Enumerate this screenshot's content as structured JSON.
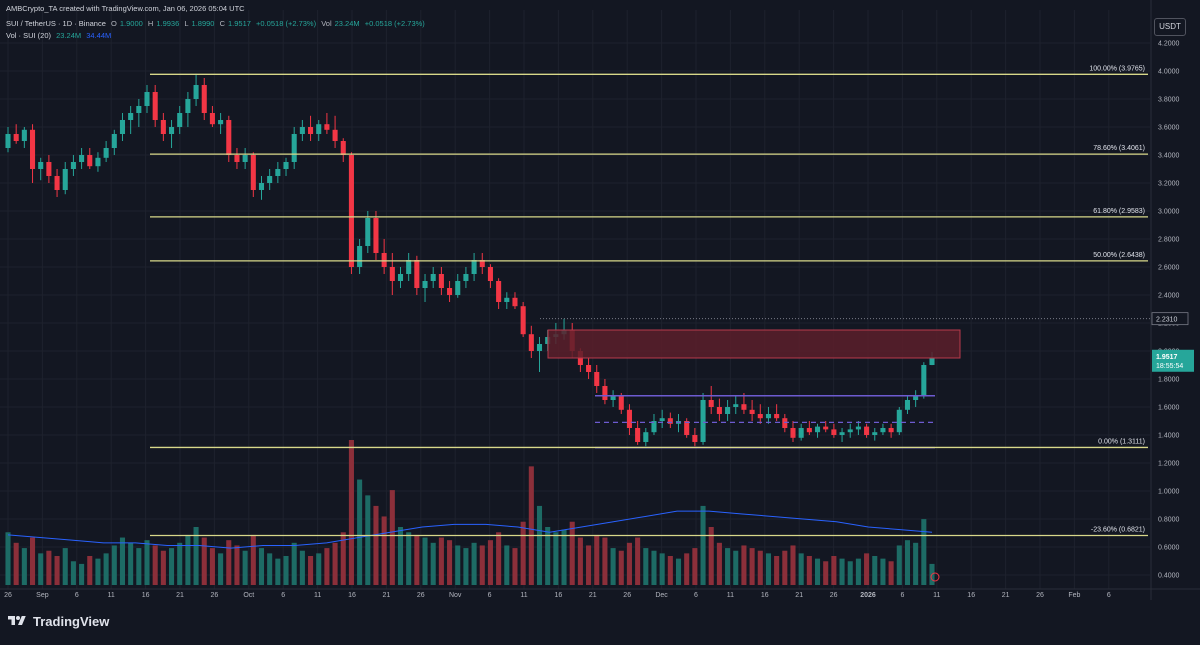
{
  "header": {
    "line1": "AMBCrypto_TA created with TradingView.com, Jan 06, 2026 05:04 UTC",
    "pair": "SUI / TetherUS · 1D · Binance",
    "ohlc": {
      "o_label": "O",
      "o": "1.9000",
      "h_label": "H",
      "h": "1.9936",
      "l_label": "L",
      "l": "1.8990",
      "c_label": "C",
      "c": "1.9517",
      "change": "+0.0518 (+2.73%)"
    },
    "vol_label": "Vol",
    "vol_value": "23.24M",
    "vol_change": "+0.0518 (+2.73%)",
    "vol_indicator": "Vol · SUI (20)",
    "vol_indicator_value": "23.24M",
    "vol_ma_value": "34.44M"
  },
  "currency_badge": "USDT",
  "watermark": "TradingView",
  "colors": {
    "background": "#131722",
    "up": "#26a69a",
    "down": "#f23645",
    "fib": "#d8d88a",
    "range": "#6d5bd0",
    "zone_fill": "#5c1f2a",
    "zone_border": "#b73a4c",
    "vol_ma": "#2962ff",
    "grid": "#1e222d",
    "axis_text": "#b2b5be"
  },
  "chart_data": {
    "type": "candlestick",
    "symbol": "SUI / TetherUS",
    "interval": "1D",
    "exchange": "Binance",
    "yaxis": {
      "range": [
        0.3,
        4.2
      ],
      "ticks": [
        "4.2000",
        "4.0000",
        "3.8000",
        "3.6000",
        "3.4000",
        "3.2000",
        "3.0000",
        "2.8000",
        "2.6000",
        "2.4000",
        "2.2000",
        "2.0000",
        "1.8000",
        "1.6000",
        "1.4000",
        "1.2000",
        "1.0000",
        "0.8000",
        "0.6000",
        "0.4000"
      ],
      "last_price_label": {
        "price": "1.9517",
        "countdown": "18:55:54"
      },
      "marker_label": "2.2310"
    },
    "xaxis": {
      "ticks": [
        "26",
        "Sep",
        "6",
        "11",
        "16",
        "21",
        "26",
        "Oct",
        "6",
        "11",
        "16",
        "21",
        "26",
        "Nov",
        "6",
        "11",
        "16",
        "21",
        "26",
        "Dec",
        "6",
        "11",
        "16",
        "21",
        "26",
        "2026",
        "6",
        "11",
        "16",
        "21",
        "26",
        "Feb",
        "6"
      ]
    },
    "fib_levels": [
      {
        "label": "100.00% (3.9765)",
        "price": 3.9765
      },
      {
        "label": "78.60% (3.4061)",
        "price": 3.4061
      },
      {
        "label": "61.80% (2.9583)",
        "price": 2.9583
      },
      {
        "label": "50.00% (2.6438)",
        "price": 2.6438
      },
      {
        "label": "0.00% (1.3111)",
        "price": 1.3111
      },
      {
        "label": "-23.60% (0.6821)",
        "price": 0.6821
      }
    ],
    "resistance_zone": {
      "from": 1.95,
      "to": 2.15
    },
    "range_box": {
      "high": 1.68,
      "mid": 1.49,
      "low": 1.31
    },
    "marker_price": 2.231,
    "candles": [
      [
        3.45,
        3.6,
        3.42,
        3.55,
        20
      ],
      [
        3.55,
        3.62,
        3.48,
        3.5,
        16
      ],
      [
        3.5,
        3.6,
        3.45,
        3.58,
        14
      ],
      [
        3.58,
        3.62,
        3.2,
        3.3,
        18
      ],
      [
        3.3,
        3.38,
        3.22,
        3.35,
        12
      ],
      [
        3.35,
        3.4,
        3.2,
        3.25,
        13
      ],
      [
        3.25,
        3.3,
        3.1,
        3.15,
        11
      ],
      [
        3.15,
        3.35,
        3.12,
        3.3,
        14
      ],
      [
        3.3,
        3.4,
        3.25,
        3.35,
        9
      ],
      [
        3.35,
        3.45,
        3.3,
        3.4,
        8
      ],
      [
        3.4,
        3.45,
        3.3,
        3.32,
        11
      ],
      [
        3.32,
        3.42,
        3.28,
        3.38,
        10
      ],
      [
        3.38,
        3.5,
        3.35,
        3.45,
        12
      ],
      [
        3.45,
        3.58,
        3.4,
        3.55,
        15
      ],
      [
        3.55,
        3.7,
        3.5,
        3.65,
        18
      ],
      [
        3.65,
        3.75,
        3.55,
        3.7,
        16
      ],
      [
        3.7,
        3.8,
        3.6,
        3.75,
        14
      ],
      [
        3.75,
        3.9,
        3.7,
        3.85,
        17
      ],
      [
        3.85,
        3.9,
        3.6,
        3.65,
        15
      ],
      [
        3.65,
        3.7,
        3.5,
        3.55,
        13
      ],
      [
        3.55,
        3.65,
        3.45,
        3.6,
        14
      ],
      [
        3.6,
        3.75,
        3.55,
        3.7,
        16
      ],
      [
        3.7,
        3.85,
        3.6,
        3.8,
        19
      ],
      [
        3.8,
        3.98,
        3.75,
        3.9,
        22
      ],
      [
        3.9,
        3.95,
        3.65,
        3.7,
        18
      ],
      [
        3.7,
        3.75,
        3.6,
        3.62,
        14
      ],
      [
        3.62,
        3.7,
        3.55,
        3.65,
        12
      ],
      [
        3.65,
        3.68,
        3.35,
        3.4,
        17
      ],
      [
        3.4,
        3.45,
        3.3,
        3.35,
        15
      ],
      [
        3.35,
        3.45,
        3.3,
        3.4,
        13
      ],
      [
        3.4,
        3.42,
        3.1,
        3.15,
        19
      ],
      [
        3.15,
        3.25,
        3.08,
        3.2,
        14
      ],
      [
        3.2,
        3.3,
        3.15,
        3.25,
        12
      ],
      [
        3.25,
        3.35,
        3.2,
        3.3,
        10
      ],
      [
        3.3,
        3.38,
        3.25,
        3.35,
        11
      ],
      [
        3.35,
        3.6,
        3.3,
        3.55,
        16
      ],
      [
        3.55,
        3.65,
        3.5,
        3.6,
        13
      ],
      [
        3.6,
        3.68,
        3.5,
        3.55,
        11
      ],
      [
        3.55,
        3.65,
        3.5,
        3.62,
        12
      ],
      [
        3.62,
        3.7,
        3.55,
        3.58,
        14
      ],
      [
        3.58,
        3.68,
        3.45,
        3.5,
        16
      ],
      [
        3.5,
        3.52,
        3.35,
        3.4,
        20
      ],
      [
        3.4,
        3.42,
        2.55,
        2.6,
        55
      ],
      [
        2.6,
        2.8,
        2.55,
        2.75,
        40
      ],
      [
        2.75,
        3.0,
        2.7,
        2.95,
        34
      ],
      [
        2.95,
        3.0,
        2.65,
        2.7,
        30
      ],
      [
        2.7,
        2.8,
        2.55,
        2.6,
        26
      ],
      [
        2.6,
        2.7,
        2.4,
        2.5,
        36
      ],
      [
        2.5,
        2.6,
        2.45,
        2.55,
        22
      ],
      [
        2.55,
        2.7,
        2.5,
        2.65,
        20
      ],
      [
        2.65,
        2.68,
        2.4,
        2.45,
        19
      ],
      [
        2.45,
        2.55,
        2.35,
        2.5,
        18
      ],
      [
        2.5,
        2.6,
        2.45,
        2.55,
        16
      ],
      [
        2.55,
        2.6,
        2.4,
        2.45,
        18
      ],
      [
        2.45,
        2.5,
        2.35,
        2.4,
        17
      ],
      [
        2.4,
        2.55,
        2.38,
        2.5,
        15
      ],
      [
        2.5,
        2.6,
        2.45,
        2.55,
        14
      ],
      [
        2.55,
        2.7,
        2.5,
        2.65,
        16
      ],
      [
        2.65,
        2.7,
        2.55,
        2.6,
        15
      ],
      [
        2.6,
        2.62,
        2.45,
        2.5,
        17
      ],
      [
        2.5,
        2.52,
        2.3,
        2.35,
        20
      ],
      [
        2.35,
        2.42,
        2.3,
        2.38,
        15
      ],
      [
        2.38,
        2.42,
        2.3,
        2.32,
        14
      ],
      [
        2.32,
        2.35,
        2.1,
        2.12,
        24
      ],
      [
        2.12,
        2.18,
        1.95,
        2.0,
        45
      ],
      [
        2.0,
        2.1,
        1.85,
        2.05,
        30
      ],
      [
        2.05,
        2.15,
        2.0,
        2.1,
        22
      ],
      [
        2.1,
        2.2,
        2.05,
        2.12,
        20
      ],
      [
        2.12,
        2.23,
        2.08,
        2.15,
        21
      ],
      [
        2.15,
        2.2,
        1.95,
        2.0,
        24
      ],
      [
        2.0,
        2.02,
        1.85,
        1.9,
        18
      ],
      [
        1.9,
        1.95,
        1.8,
        1.85,
        15
      ],
      [
        1.85,
        1.9,
        1.7,
        1.75,
        19
      ],
      [
        1.75,
        1.8,
        1.62,
        1.65,
        18
      ],
      [
        1.65,
        1.72,
        1.6,
        1.68,
        14
      ],
      [
        1.68,
        1.7,
        1.55,
        1.58,
        13
      ],
      [
        1.58,
        1.62,
        1.4,
        1.45,
        16
      ],
      [
        1.45,
        1.5,
        1.33,
        1.35,
        18
      ],
      [
        1.35,
        1.45,
        1.32,
        1.42,
        14
      ],
      [
        1.42,
        1.55,
        1.4,
        1.5,
        13
      ],
      [
        1.5,
        1.58,
        1.45,
        1.52,
        12
      ],
      [
        1.52,
        1.56,
        1.45,
        1.48,
        11
      ],
      [
        1.48,
        1.55,
        1.42,
        1.5,
        10
      ],
      [
        1.5,
        1.52,
        1.38,
        1.4,
        12
      ],
      [
        1.4,
        1.45,
        1.32,
        1.35,
        14
      ],
      [
        1.35,
        1.7,
        1.33,
        1.65,
        30
      ],
      [
        1.65,
        1.75,
        1.55,
        1.6,
        22
      ],
      [
        1.6,
        1.66,
        1.5,
        1.55,
        16
      ],
      [
        1.55,
        1.65,
        1.5,
        1.6,
        14
      ],
      [
        1.6,
        1.68,
        1.55,
        1.62,
        13
      ],
      [
        1.62,
        1.7,
        1.55,
        1.58,
        15
      ],
      [
        1.58,
        1.65,
        1.5,
        1.55,
        14
      ],
      [
        1.55,
        1.62,
        1.48,
        1.52,
        13
      ],
      [
        1.52,
        1.6,
        1.48,
        1.55,
        12
      ],
      [
        1.55,
        1.62,
        1.5,
        1.52,
        11
      ],
      [
        1.52,
        1.55,
        1.42,
        1.45,
        13
      ],
      [
        1.45,
        1.5,
        1.35,
        1.38,
        15
      ],
      [
        1.38,
        1.48,
        1.36,
        1.45,
        12
      ],
      [
        1.45,
        1.5,
        1.4,
        1.42,
        11
      ],
      [
        1.42,
        1.48,
        1.38,
        1.46,
        10
      ],
      [
        1.46,
        1.5,
        1.42,
        1.44,
        9
      ],
      [
        1.44,
        1.48,
        1.38,
        1.4,
        11
      ],
      [
        1.4,
        1.45,
        1.35,
        1.42,
        10
      ],
      [
        1.42,
        1.48,
        1.38,
        1.44,
        9
      ],
      [
        1.44,
        1.5,
        1.4,
        1.46,
        10
      ],
      [
        1.46,
        1.48,
        1.38,
        1.4,
        12
      ],
      [
        1.4,
        1.45,
        1.36,
        1.42,
        11
      ],
      [
        1.42,
        1.48,
        1.4,
        1.45,
        10
      ],
      [
        1.45,
        1.48,
        1.38,
        1.42,
        9
      ],
      [
        1.42,
        1.6,
        1.4,
        1.58,
        15
      ],
      [
        1.58,
        1.68,
        1.55,
        1.65,
        17
      ],
      [
        1.65,
        1.72,
        1.6,
        1.68,
        16
      ],
      [
        1.68,
        1.92,
        1.66,
        1.9,
        25
      ],
      [
        1.9,
        1.9936,
        1.899,
        1.9517,
        8
      ]
    ],
    "vol_ma": [
      19,
      18,
      17,
      16,
      16,
      15,
      15,
      14,
      15,
      15,
      16,
      18,
      20,
      22,
      23,
      23,
      22,
      20,
      22,
      24,
      26,
      28,
      28,
      27,
      26,
      25,
      24,
      22,
      21,
      20
    ]
  }
}
